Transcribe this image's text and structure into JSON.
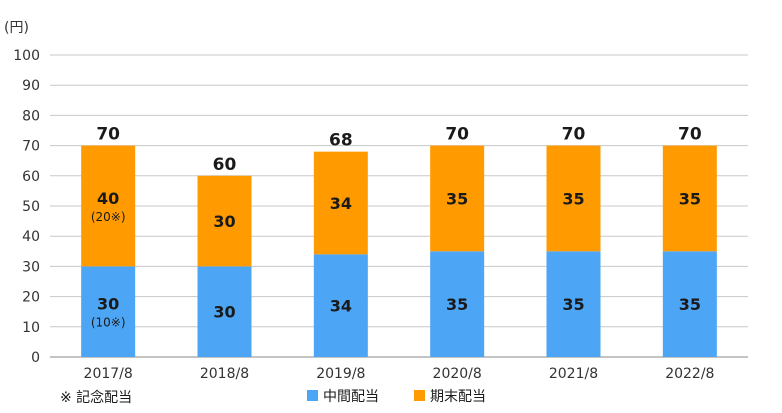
{
  "chart_data": {
    "type": "bar",
    "stacked": true,
    "unit_label": "(円)",
    "categories": [
      "2017/8",
      "2018/8",
      "2019/8",
      "2020/8",
      "2021/8",
      "2022/8"
    ],
    "series": [
      {
        "name": "中間配当",
        "color": "#4da6f5",
        "values": [
          30,
          30,
          34,
          35,
          35,
          35
        ],
        "labels": [
          "30",
          "30",
          "34",
          "35",
          "35",
          "35"
        ],
        "notes": [
          "(10※)",
          "",
          "",
          "",
          "",
          ""
        ]
      },
      {
        "name": "期末配当",
        "color": "#ff9b00",
        "values": [
          40,
          30,
          34,
          35,
          35,
          35
        ],
        "labels": [
          "40",
          "30",
          "34",
          "35",
          "35",
          "35"
        ],
        "notes": [
          "(20※)",
          "",
          "",
          "",
          "",
          ""
        ]
      }
    ],
    "totals": [
      "70",
      "60",
      "68",
      "70",
      "70",
      "70"
    ],
    "ylim": [
      0,
      100
    ],
    "yticks": [
      0,
      10,
      20,
      30,
      40,
      50,
      60,
      70,
      80,
      90,
      100
    ],
    "grid": true,
    "legend_position": "bottom-center",
    "footnote": "※ 記念配当"
  }
}
